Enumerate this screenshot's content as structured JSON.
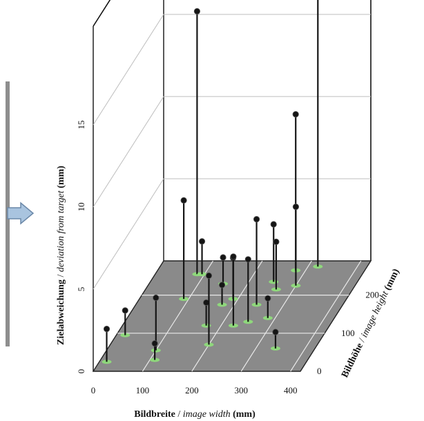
{
  "chart_data": {
    "type": "scatter",
    "subtype": "3d-stem",
    "title": "",
    "xlabel": {
      "bold": "Bildbreite",
      "sep": " / ",
      "italic": "image width",
      "unit": " (mm)"
    },
    "ylabel": {
      "bold": "Bildhöhe",
      "sep": " / ",
      "italic": "image height",
      "unit": " (mm)"
    },
    "zlabel": {
      "bold": "Zielabweichung",
      "sep": " / ",
      "italic": "deviation from target",
      "unit": " (mm)"
    },
    "x_ticks": [
      "0",
      "100",
      "200",
      "300",
      "400"
    ],
    "y_ticks": [
      "0",
      "100",
      "200"
    ],
    "z_ticks": [
      "0",
      "5",
      "10",
      "15"
    ],
    "xlim": [
      0,
      420
    ],
    "ylim": [
      0,
      290
    ],
    "zlim": [
      0,
      21
    ],
    "grid": true,
    "marker_color": "#151515",
    "base_color": "#8fe07a",
    "floor_color": "#8a8a8a",
    "points": [
      {
        "x": 15,
        "y": 25,
        "z": 2.0
      },
      {
        "x": 18,
        "y": 95,
        "z": 1.5
      },
      {
        "x": 100,
        "y": 55,
        "z": 3.2
      },
      {
        "x": 110,
        "y": 30,
        "z": 1.0
      },
      {
        "x": 90,
        "y": 190,
        "z": 6.0
      },
      {
        "x": 85,
        "y": 255,
        "z": 16.0
      },
      {
        "x": 95,
        "y": 255,
        "z": 2.0
      },
      {
        "x": 150,
        "y": 230,
        "z": 1.6
      },
      {
        "x": 170,
        "y": 120,
        "z": 1.4
      },
      {
        "x": 175,
        "y": 175,
        "z": 1.2
      },
      {
        "x": 190,
        "y": 190,
        "z": 2.5
      },
      {
        "x": 200,
        "y": 70,
        "z": 4.2
      },
      {
        "x": 225,
        "y": 120,
        "z": 4.2
      },
      {
        "x": 250,
        "y": 130,
        "z": 3.8
      },
      {
        "x": 245,
        "y": 175,
        "z": 5.2
      },
      {
        "x": 250,
        "y": 235,
        "z": 3.5
      },
      {
        "x": 265,
        "y": 215,
        "z": 2.9
      },
      {
        "x": 285,
        "y": 140,
        "z": 1.2
      },
      {
        "x": 300,
        "y": 225,
        "z": 4.8
      },
      {
        "x": 340,
        "y": 60,
        "z": 1.0
      },
      {
        "x": 280,
        "y": 265,
        "z": 9.5
      },
      {
        "x": 320,
        "y": 275,
        "z": 19.5
      }
    ]
  }
}
